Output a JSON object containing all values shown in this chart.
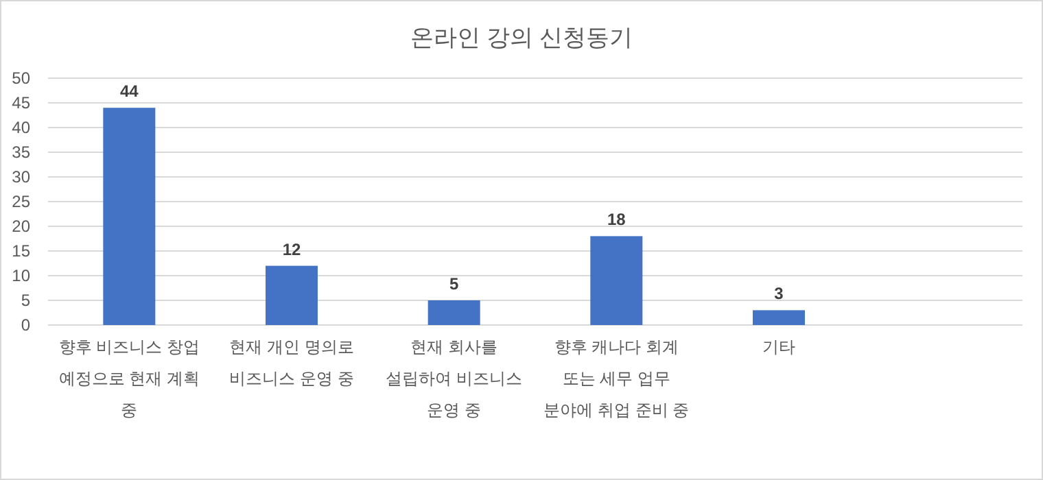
{
  "chart_data": {
    "type": "bar",
    "title": "온라인 강의 신청동기",
    "categories": [
      "향후 비즈니스 창업 예정으로 현재 계획 중",
      "현재 개인 명의로 비즈니스 운영 중",
      "현재 회사를 설립하여 비즈니스 운영 중",
      "향후 캐나다 회계 또는 세무 업무 분야에 취업 준비 중",
      "기타",
      null
    ],
    "values": [
      44,
      12,
      5,
      18,
      3,
      null
    ],
    "color": "#4472c4",
    "ylim": [
      0,
      50
    ],
    "yticks": [
      0,
      5,
      10,
      15,
      20,
      25,
      30,
      35,
      40,
      45,
      50
    ],
    "grid": "y",
    "data_labels": true
  }
}
